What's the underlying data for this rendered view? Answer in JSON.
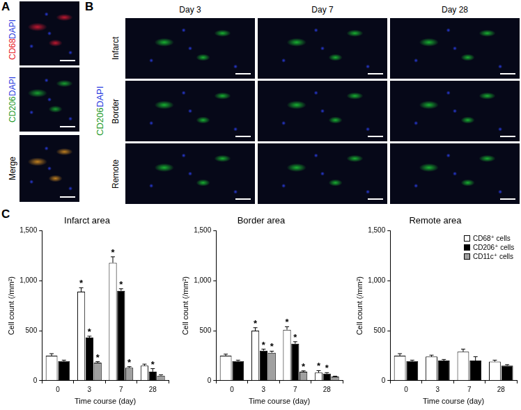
{
  "panels": {
    "A": {
      "label": "A",
      "rows": [
        {
          "stains": [
            {
              "text": "CD68",
              "color": "#e8202a"
            },
            {
              "text": "DAPI",
              "color": "#2a3ce0"
            }
          ]
        },
        {
          "stains": [
            {
              "text": "CD206",
              "color": "#1f9a2a"
            },
            {
              "text": "DAPI",
              "color": "#2a3ce0"
            }
          ]
        },
        {
          "stains": [
            {
              "text": "Merge",
              "color": "#000000"
            }
          ]
        }
      ]
    },
    "B": {
      "label": "B",
      "columns": [
        "Day 3",
        "Day 7",
        "Day 28"
      ],
      "rows": [
        "Infarct",
        "Border",
        "Remote"
      ],
      "stains": [
        {
          "text": "CD206",
          "color": "#1f9a2a"
        },
        {
          "text": "DAPI",
          "color": "#2a3ce0"
        }
      ]
    },
    "C": {
      "label": "C"
    }
  },
  "chart_data": [
    {
      "type": "bar",
      "title": "Infarct area",
      "x_label": "Time course (day)",
      "y_label": "Cell count (/mm²)",
      "categories": [
        "0",
        "3",
        "7",
        "28"
      ],
      "ylim": [
        0,
        1500
      ],
      "yticks": [
        0,
        500,
        {
          "value": 1000,
          "label": "1,000"
        },
        {
          "value": 1500,
          "label": "1,500"
        }
      ],
      "grid": false,
      "series": [
        {
          "name": "CD68⁺ cells",
          "color": "#ffffff",
          "values": [
            250,
            890,
            1180,
            150
          ],
          "errors": [
            20,
            40,
            60,
            15
          ],
          "annotations": [
            null,
            "*",
            "*",
            null
          ]
        },
        {
          "name": "CD206⁺ cells",
          "color": "#000000",
          "values": [
            195,
            430,
            900,
            90
          ],
          "errors": [
            10,
            15,
            20,
            30
          ],
          "annotations": [
            null,
            "*",
            "*",
            "*"
          ]
        },
        {
          "name": "CD11c⁺ cells",
          "color": "#a0a0a0",
          "values": [
            null,
            180,
            130,
            50
          ],
          "errors": [
            null,
            10,
            10,
            8
          ],
          "annotations": [
            null,
            "*",
            "*",
            null
          ]
        }
      ]
    },
    {
      "type": "bar",
      "title": "Border area",
      "x_label": "Time course (day)",
      "y_label": "Cell count (/mm²)",
      "categories": [
        "0",
        "3",
        "7",
        "28"
      ],
      "ylim": [
        0,
        1500
      ],
      "yticks": [
        0,
        500,
        {
          "value": 1000,
          "label": "1,000"
        },
        {
          "value": 1500,
          "label": "1,500"
        }
      ],
      "grid": false,
      "series": [
        {
          "name": "CD68⁺ cells",
          "color": "#ffffff",
          "values": [
            250,
            500,
            510,
            80
          ],
          "errors": [
            15,
            30,
            30,
            20
          ],
          "annotations": [
            null,
            "*",
            "*",
            "*"
          ]
        },
        {
          "name": "CD206⁺ cells",
          "color": "#000000",
          "values": [
            195,
            300,
            370,
            70
          ],
          "errors": [
            10,
            15,
            20,
            10
          ],
          "annotations": [
            null,
            "*",
            "*",
            "*"
          ]
        },
        {
          "name": "CD11c⁺ cells",
          "color": "#a0a0a0",
          "values": [
            null,
            280,
            90,
            40
          ],
          "errors": [
            null,
            15,
            8,
            5
          ],
          "annotations": [
            null,
            "*",
            "*",
            null
          ]
        }
      ]
    },
    {
      "type": "bar",
      "title": "Remote area",
      "x_label": "Time course (day)",
      "y_label": "Cell count (/mm²)",
      "categories": [
        "0",
        "3",
        "7",
        "28"
      ],
      "ylim": [
        0,
        1500
      ],
      "yticks": [
        0,
        500,
        {
          "value": 1000,
          "label": "1,000"
        },
        {
          "value": 1500,
          "label": "1,500"
        }
      ],
      "grid": false,
      "legend": "upper right",
      "series": [
        {
          "name": "CD68⁺ cells",
          "color": "#ffffff",
          "values": [
            250,
            240,
            290,
            190
          ],
          "errors": [
            20,
            15,
            25,
            15
          ],
          "annotations": [
            null,
            null,
            null,
            null
          ]
        },
        {
          "name": "CD206⁺ cells",
          "color": "#000000",
          "values": [
            195,
            200,
            200,
            150
          ],
          "errors": [
            10,
            12,
            40,
            10
          ],
          "annotations": [
            null,
            null,
            null,
            null
          ]
        },
        {
          "name": "CD11c⁺ cells",
          "color": "#a0a0a0",
          "values": [
            null,
            null,
            null,
            null
          ],
          "errors": [
            null,
            null,
            null,
            null
          ],
          "annotations": [
            null,
            null,
            null,
            null
          ]
        }
      ]
    }
  ]
}
